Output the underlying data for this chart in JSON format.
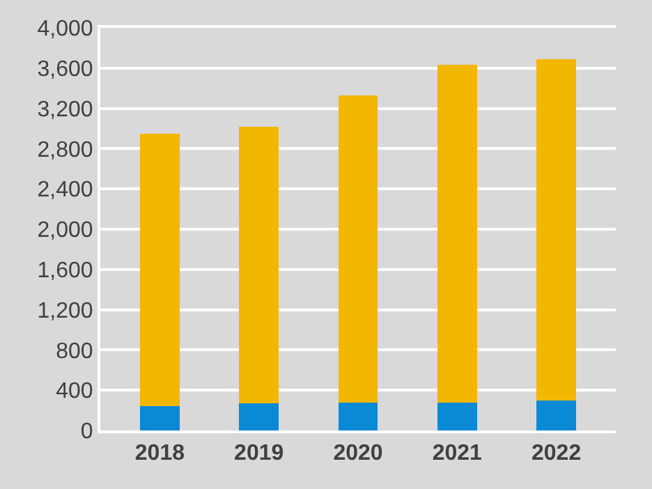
{
  "chart_data": {
    "type": "bar",
    "stacked": true,
    "categories": [
      "2018",
      "2019",
      "2020",
      "2021",
      "2022"
    ],
    "series": [
      {
        "color": "#0a8ad4",
        "values": [
          240,
          270,
          280,
          280,
          300
        ]
      },
      {
        "color": "#f2b700",
        "values": [
          2710,
          2750,
          3050,
          3350,
          3390
        ]
      }
    ],
    "ylim": [
      0,
      4000
    ],
    "yticks": [
      {
        "value": 0,
        "label": "0"
      },
      {
        "value": 400,
        "label": "400"
      },
      {
        "value": 800,
        "label": "800"
      },
      {
        "value": 1200,
        "label": "1,200"
      },
      {
        "value": 1600,
        "label": "1,600"
      },
      {
        "value": 2000,
        "label": "2,000"
      },
      {
        "value": 2400,
        "label": "2,400"
      },
      {
        "value": 2800,
        "label": "2,800"
      },
      {
        "value": 3200,
        "label": "3,200"
      },
      {
        "value": 3600,
        "label": "3,600"
      },
      {
        "value": 4000,
        "label": "4,000"
      }
    ],
    "grid": "y"
  }
}
